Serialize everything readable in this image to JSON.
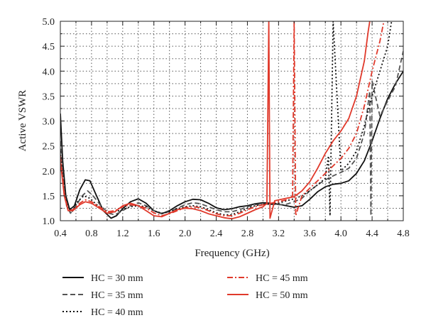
{
  "chart_data": {
    "type": "line",
    "xlabel": "Frequency (GHz)",
    "ylabel": "Active VSWR",
    "xlim": [
      0.4,
      4.8
    ],
    "ylim": [
      1.0,
      5.0
    ],
    "xticks": [
      "0.4",
      "0.8",
      "1.2",
      "1.6",
      "2.0",
      "2.4",
      "2.8",
      "3.2",
      "3.6",
      "4.0",
      "4.4",
      "4.8"
    ],
    "yticks": [
      "1.0",
      "1.5",
      "2.0",
      "2.5",
      "3.0",
      "3.5",
      "4.0",
      "4.5",
      "5.0"
    ],
    "grid": "dotted",
    "legend_position": "bottom",
    "series": [
      {
        "name": "HC = 30 mm",
        "color": "#111111",
        "dash": "solid",
        "points": [
          [
            0.4,
            3.15
          ],
          [
            0.43,
            2.2
          ],
          [
            0.47,
            1.5
          ],
          [
            0.52,
            1.22
          ],
          [
            0.58,
            1.3
          ],
          [
            0.65,
            1.62
          ],
          [
            0.72,
            1.82
          ],
          [
            0.78,
            1.8
          ],
          [
            0.85,
            1.55
          ],
          [
            0.95,
            1.2
          ],
          [
            1.05,
            1.05
          ],
          [
            1.12,
            1.1
          ],
          [
            1.2,
            1.24
          ],
          [
            1.3,
            1.38
          ],
          [
            1.4,
            1.44
          ],
          [
            1.5,
            1.35
          ],
          [
            1.6,
            1.2
          ],
          [
            1.7,
            1.14
          ],
          [
            1.8,
            1.2
          ],
          [
            1.9,
            1.3
          ],
          [
            2.0,
            1.38
          ],
          [
            2.1,
            1.43
          ],
          [
            2.2,
            1.42
          ],
          [
            2.3,
            1.35
          ],
          [
            2.4,
            1.26
          ],
          [
            2.5,
            1.22
          ],
          [
            2.6,
            1.24
          ],
          [
            2.7,
            1.28
          ],
          [
            2.8,
            1.3
          ],
          [
            2.9,
            1.34
          ],
          [
            3.0,
            1.36
          ],
          [
            3.1,
            1.35
          ],
          [
            3.2,
            1.33
          ],
          [
            3.3,
            1.3
          ],
          [
            3.4,
            1.27
          ],
          [
            3.5,
            1.3
          ],
          [
            3.6,
            1.43
          ],
          [
            3.7,
            1.58
          ],
          [
            3.8,
            1.68
          ],
          [
            3.9,
            1.73
          ],
          [
            4.0,
            1.75
          ],
          [
            4.1,
            1.8
          ],
          [
            4.2,
            1.95
          ],
          [
            4.3,
            2.2
          ],
          [
            4.4,
            2.6
          ],
          [
            4.5,
            3.05
          ],
          [
            4.6,
            3.45
          ],
          [
            4.7,
            3.75
          ],
          [
            4.8,
            4.0
          ]
        ]
      },
      {
        "name": "HC = 35 mm",
        "color": "#555555",
        "dash": "dashed",
        "points": [
          [
            0.4,
            2.6
          ],
          [
            0.44,
            1.75
          ],
          [
            0.48,
            1.3
          ],
          [
            0.53,
            1.15
          ],
          [
            0.6,
            1.3
          ],
          [
            0.68,
            1.5
          ],
          [
            0.75,
            1.6
          ],
          [
            0.82,
            1.5
          ],
          [
            0.92,
            1.3
          ],
          [
            1.02,
            1.15
          ],
          [
            1.1,
            1.12
          ],
          [
            1.2,
            1.2
          ],
          [
            1.3,
            1.3
          ],
          [
            1.4,
            1.36
          ],
          [
            1.5,
            1.3
          ],
          [
            1.6,
            1.2
          ],
          [
            1.7,
            1.15
          ],
          [
            1.8,
            1.18
          ],
          [
            1.9,
            1.25
          ],
          [
            2.0,
            1.32
          ],
          [
            2.1,
            1.36
          ],
          [
            2.2,
            1.34
          ],
          [
            2.3,
            1.28
          ],
          [
            2.4,
            1.22
          ],
          [
            2.5,
            1.18
          ],
          [
            2.6,
            1.18
          ],
          [
            2.7,
            1.22
          ],
          [
            2.8,
            1.28
          ],
          [
            2.9,
            1.32
          ],
          [
            3.0,
            1.34
          ],
          [
            3.1,
            1.33
          ],
          [
            3.2,
            1.32
          ],
          [
            3.3,
            1.33
          ],
          [
            3.4,
            1.38
          ],
          [
            3.5,
            1.45
          ],
          [
            3.6,
            1.6
          ],
          [
            3.7,
            1.72
          ],
          [
            3.8,
            1.82
          ],
          [
            3.9,
            1.9
          ],
          [
            4.0,
            1.97
          ],
          [
            4.1,
            2.05
          ],
          [
            4.2,
            2.25
          ],
          [
            4.3,
            2.75
          ],
          [
            4.37,
            3.6
          ],
          [
            4.385,
            1.1
          ],
          [
            4.4,
            3.8
          ],
          [
            4.5,
            3.1
          ],
          [
            4.6,
            3.4
          ],
          [
            4.7,
            3.7
          ],
          [
            4.8,
            4.4
          ]
        ]
      },
      {
        "name": "HC = 40 mm",
        "color": "#111111",
        "dash": "dotted",
        "points": [
          [
            0.4,
            2.4
          ],
          [
            0.45,
            1.6
          ],
          [
            0.5,
            1.22
          ],
          [
            0.55,
            1.18
          ],
          [
            0.62,
            1.38
          ],
          [
            0.7,
            1.5
          ],
          [
            0.78,
            1.45
          ],
          [
            0.88,
            1.3
          ],
          [
            1.0,
            1.15
          ],
          [
            1.1,
            1.18
          ],
          [
            1.2,
            1.22
          ],
          [
            1.3,
            1.28
          ],
          [
            1.4,
            1.3
          ],
          [
            1.5,
            1.28
          ],
          [
            1.6,
            1.2
          ],
          [
            1.7,
            1.15
          ],
          [
            1.8,
            1.18
          ],
          [
            1.9,
            1.24
          ],
          [
            2.0,
            1.28
          ],
          [
            2.1,
            1.3
          ],
          [
            2.2,
            1.28
          ],
          [
            2.3,
            1.22
          ],
          [
            2.4,
            1.16
          ],
          [
            2.5,
            1.12
          ],
          [
            2.6,
            1.12
          ],
          [
            2.7,
            1.18
          ],
          [
            2.8,
            1.25
          ],
          [
            2.9,
            1.3
          ],
          [
            3.0,
            1.33
          ],
          [
            3.1,
            1.33
          ],
          [
            3.2,
            1.35
          ],
          [
            3.3,
            1.4
          ],
          [
            3.4,
            1.44
          ],
          [
            3.5,
            1.5
          ],
          [
            3.6,
            1.6
          ],
          [
            3.7,
            1.72
          ],
          [
            3.8,
            1.85
          ],
          [
            3.84,
            2.3
          ],
          [
            3.86,
            1.1
          ],
          [
            3.9,
            5.0
          ],
          [
            4.0,
            2.0
          ],
          [
            4.1,
            2.15
          ],
          [
            4.2,
            2.4
          ],
          [
            4.3,
            2.9
          ],
          [
            4.4,
            3.5
          ],
          [
            4.5,
            4.0
          ],
          [
            4.6,
            4.5
          ],
          [
            4.65,
            5.0
          ]
        ]
      },
      {
        "name": "HC = 45 mm",
        "color": "#e0392b",
        "dash": "dashdot",
        "points": [
          [
            0.4,
            2.3
          ],
          [
            0.45,
            1.55
          ],
          [
            0.5,
            1.2
          ],
          [
            0.56,
            1.22
          ],
          [
            0.65,
            1.35
          ],
          [
            0.72,
            1.42
          ],
          [
            0.8,
            1.38
          ],
          [
            0.9,
            1.28
          ],
          [
            1.0,
            1.18
          ],
          [
            1.1,
            1.2
          ],
          [
            1.2,
            1.28
          ],
          [
            1.3,
            1.32
          ],
          [
            1.4,
            1.3
          ],
          [
            1.5,
            1.25
          ],
          [
            1.6,
            1.16
          ],
          [
            1.7,
            1.1
          ],
          [
            1.8,
            1.14
          ],
          [
            1.9,
            1.2
          ],
          [
            2.0,
            1.26
          ],
          [
            2.1,
            1.28
          ],
          [
            2.2,
            1.26
          ],
          [
            2.3,
            1.2
          ],
          [
            2.4,
            1.14
          ],
          [
            2.5,
            1.1
          ],
          [
            2.6,
            1.1
          ],
          [
            2.7,
            1.15
          ],
          [
            2.8,
            1.22
          ],
          [
            2.9,
            1.28
          ],
          [
            3.0,
            1.32
          ],
          [
            3.1,
            1.35
          ],
          [
            3.2,
            1.38
          ],
          [
            3.3,
            1.42
          ],
          [
            3.38,
            1.5
          ],
          [
            3.4,
            5.0
          ],
          [
            3.42,
            1.1
          ],
          [
            3.5,
            1.5
          ],
          [
            3.6,
            1.65
          ],
          [
            3.7,
            1.8
          ],
          [
            3.8,
            1.95
          ],
          [
            3.9,
            2.1
          ],
          [
            4.0,
            2.25
          ],
          [
            4.1,
            2.45
          ],
          [
            4.2,
            2.75
          ],
          [
            4.3,
            3.3
          ],
          [
            4.4,
            4.0
          ],
          [
            4.5,
            4.6
          ],
          [
            4.55,
            5.0
          ]
        ]
      },
      {
        "name": "HC = 50 mm",
        "color": "#e0392b",
        "dash": "solid",
        "points": [
          [
            0.4,
            2.2
          ],
          [
            0.45,
            1.5
          ],
          [
            0.5,
            1.2
          ],
          [
            0.56,
            1.2
          ],
          [
            0.65,
            1.32
          ],
          [
            0.72,
            1.38
          ],
          [
            0.8,
            1.35
          ],
          [
            0.9,
            1.25
          ],
          [
            1.0,
            1.15
          ],
          [
            1.1,
            1.18
          ],
          [
            1.2,
            1.3
          ],
          [
            1.3,
            1.35
          ],
          [
            1.4,
            1.3
          ],
          [
            1.5,
            1.2
          ],
          [
            1.6,
            1.1
          ],
          [
            1.7,
            1.08
          ],
          [
            1.8,
            1.15
          ],
          [
            1.9,
            1.22
          ],
          [
            2.0,
            1.25
          ],
          [
            2.1,
            1.24
          ],
          [
            2.2,
            1.2
          ],
          [
            2.3,
            1.14
          ],
          [
            2.4,
            1.1
          ],
          [
            2.5,
            1.06
          ],
          [
            2.6,
            1.04
          ],
          [
            2.7,
            1.08
          ],
          [
            2.8,
            1.15
          ],
          [
            2.9,
            1.22
          ],
          [
            3.0,
            1.28
          ],
          [
            3.05,
            1.35
          ],
          [
            3.075,
            5.0
          ],
          [
            3.09,
            1.05
          ],
          [
            3.15,
            1.4
          ],
          [
            3.3,
            1.45
          ],
          [
            3.4,
            1.48
          ],
          [
            3.5,
            1.6
          ],
          [
            3.6,
            1.78
          ],
          [
            3.7,
            2.05
          ],
          [
            3.8,
            2.35
          ],
          [
            3.9,
            2.6
          ],
          [
            4.0,
            2.8
          ],
          [
            4.1,
            3.05
          ],
          [
            4.2,
            3.5
          ],
          [
            4.3,
            4.2
          ],
          [
            4.35,
            4.8
          ],
          [
            4.37,
            5.0
          ]
        ]
      }
    ]
  }
}
